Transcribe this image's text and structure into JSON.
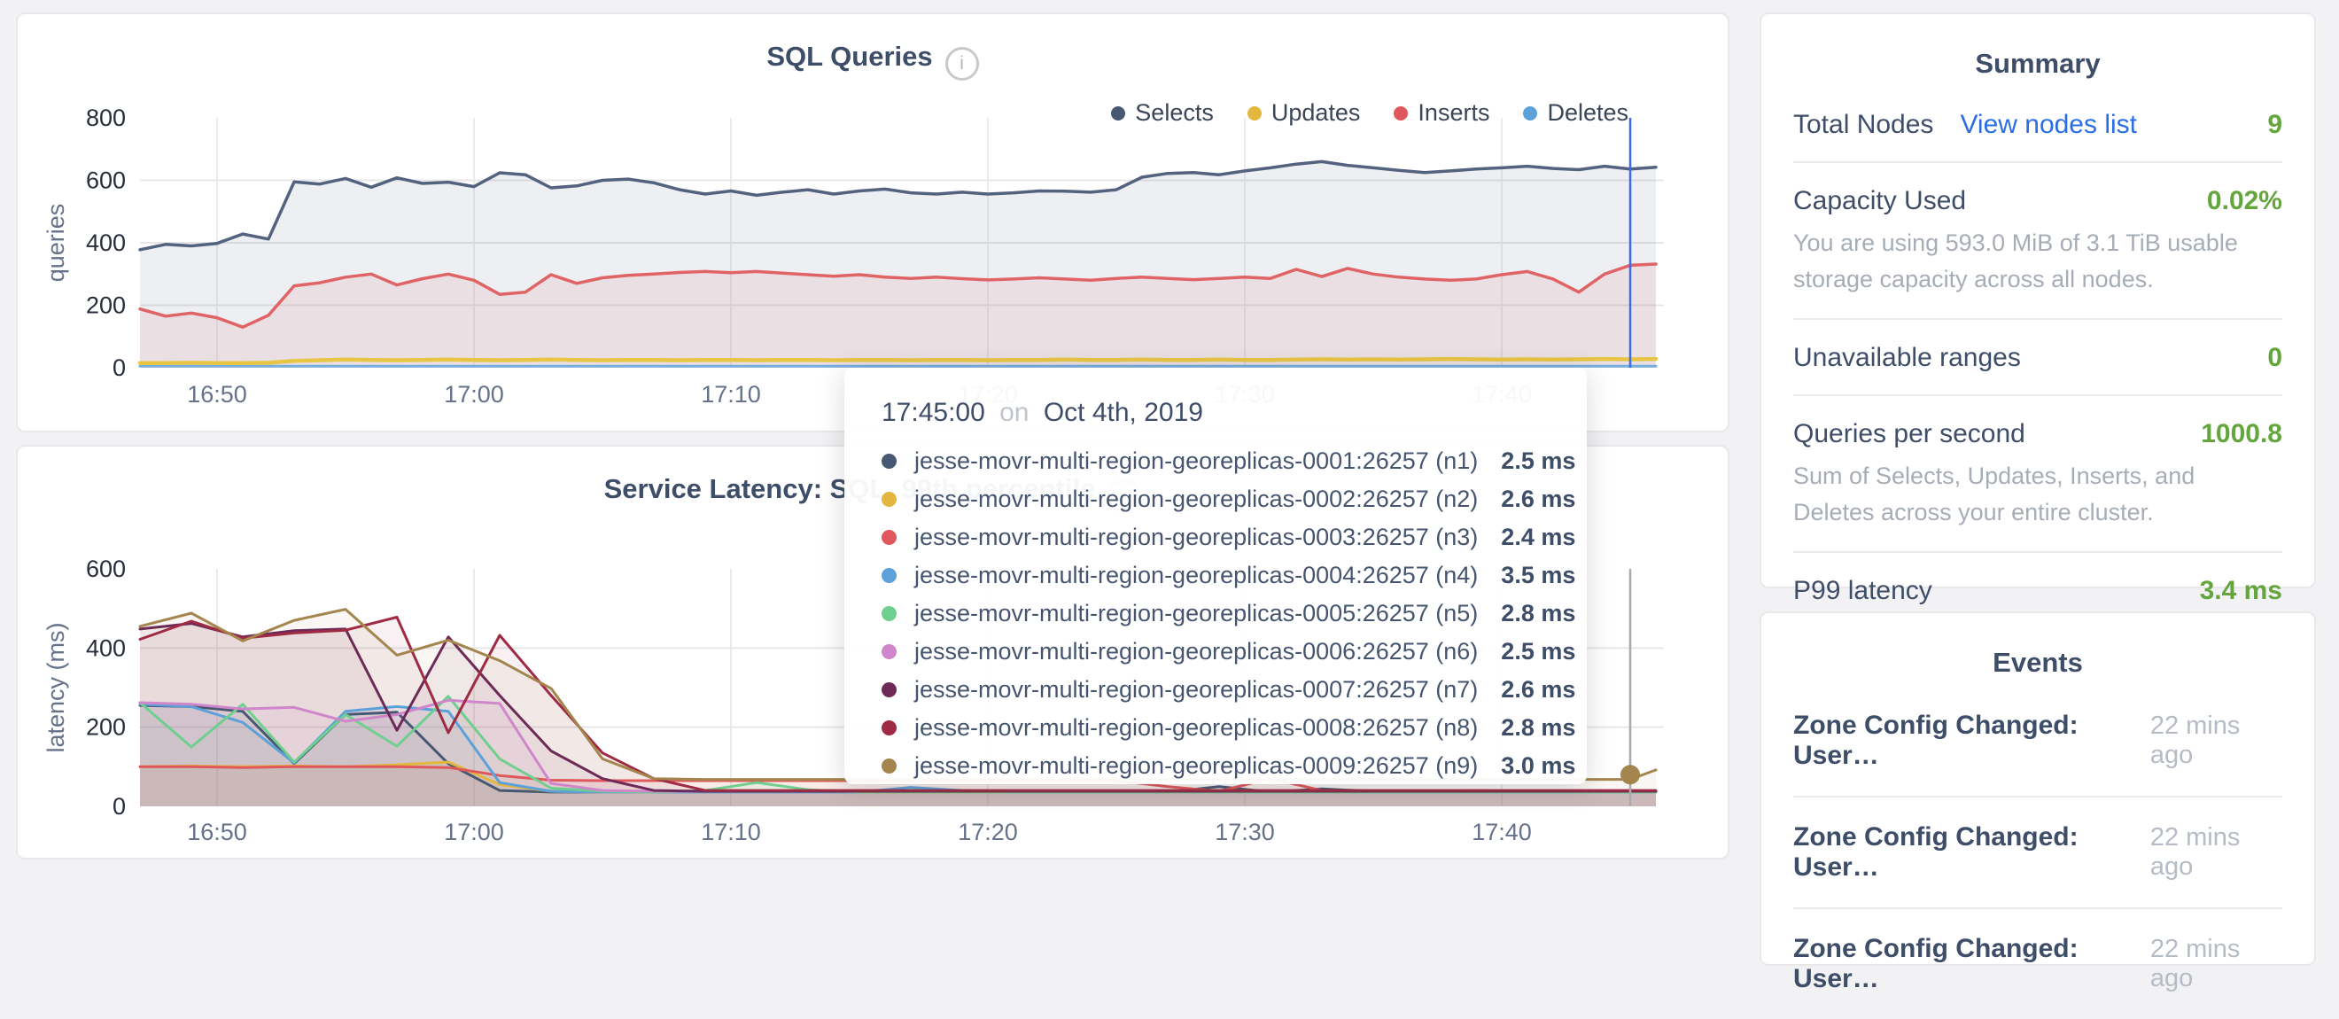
{
  "page": {
    "background": "#f2f2f4"
  },
  "icons": {
    "info": "i"
  },
  "tooltip": {
    "time": "17:45:00",
    "connector": "on",
    "date": "Oct 4th, 2019",
    "rows": [
      {
        "name": "jesse-movr-multi-region-georeplicas-0001:26257 (n1)",
        "value": "2.5 ms",
        "color": "#475872"
      },
      {
        "name": "jesse-movr-multi-region-georeplicas-0002:26257 (n2)",
        "value": "2.6 ms",
        "color": "#e3b73e"
      },
      {
        "name": "jesse-movr-multi-region-georeplicas-0003:26257 (n3)",
        "value": "2.4 ms",
        "color": "#e0585b"
      },
      {
        "name": "jesse-movr-multi-region-georeplicas-0004:26257 (n4)",
        "value": "3.5 ms",
        "color": "#5ca1d9"
      },
      {
        "name": "jesse-movr-multi-region-georeplicas-0005:26257 (n5)",
        "value": "2.8 ms",
        "color": "#6fcf8e"
      },
      {
        "name": "jesse-movr-multi-region-georeplicas-0006:26257 (n6)",
        "value": "2.5 ms",
        "color": "#cf86ca"
      },
      {
        "name": "jesse-movr-multi-region-georeplicas-0007:26257 (n7)",
        "value": "2.6 ms",
        "color": "#6e2a57"
      },
      {
        "name": "jesse-movr-multi-region-georeplicas-0008:26257 (n8)",
        "value": "2.8 ms",
        "color": "#9e2b43"
      },
      {
        "name": "jesse-movr-multi-region-georeplicas-0009:26257 (n9)",
        "value": "3.0 ms",
        "color": "#a5854e"
      }
    ]
  },
  "summary": {
    "title": "Summary",
    "value_color": "#64a53e",
    "link_color": "#2a6de5",
    "rows": [
      {
        "label": "Total Nodes",
        "link": "View nodes list",
        "value": "9"
      },
      {
        "label": "Capacity Used",
        "value": "0.02%",
        "subtitle": "You are using 593.0 MiB of 3.1 TiB usable storage capacity across all nodes."
      },
      {
        "label": "Unavailable ranges",
        "value": "0"
      },
      {
        "label": "Queries per second",
        "value": "1000.8",
        "subtitle": "Sum of Selects, Updates, Inserts, and Deletes across your entire cluster."
      },
      {
        "label": "P99 latency",
        "value": "3.4 ms"
      }
    ]
  },
  "events": {
    "title": "Events",
    "items": [
      {
        "label": "Zone Config Changed: User…",
        "time": "22 mins ago"
      },
      {
        "label": "Zone Config Changed: User…",
        "time": "22 mins ago"
      },
      {
        "label": "Zone Config Changed: User…",
        "time": "22 mins ago"
      }
    ]
  },
  "chart_data": [
    {
      "type": "area",
      "title": "SQL Queries",
      "ylabel": "queries",
      "ylim": [
        0,
        800
      ],
      "yticks": [
        0,
        200,
        400,
        600,
        800
      ],
      "x_unit": "minutes since 16:47",
      "xticks": [
        {
          "t": 3,
          "label": "16:50"
        },
        {
          "t": 13,
          "label": "17:00"
        },
        {
          "t": 23,
          "label": "17:10"
        },
        {
          "t": 33,
          "label": "17:20"
        },
        {
          "t": 43,
          "label": "17:30"
        },
        {
          "t": 53,
          "label": "17:40"
        }
      ],
      "crosshair": {
        "t": 58,
        "label": "17:45",
        "color": "#3b6cf0"
      },
      "legend": [
        {
          "name": "Selects",
          "color": "#475872"
        },
        {
          "name": "Updates",
          "color": "#e3b73e"
        },
        {
          "name": "Inserts",
          "color": "#e0585b"
        },
        {
          "name": "Deletes",
          "color": "#5ca1d9"
        }
      ],
      "x": [
        0,
        1,
        2,
        3,
        4,
        5,
        6,
        7,
        8,
        9,
        10,
        11,
        12,
        13,
        14,
        15,
        16,
        17,
        18,
        19,
        20,
        21,
        22,
        23,
        24,
        25,
        26,
        27,
        28,
        29,
        30,
        31,
        32,
        33,
        34,
        35,
        36,
        37,
        38,
        39,
        40,
        41,
        42,
        43,
        44,
        45,
        46,
        47,
        48,
        49,
        50,
        51,
        52,
        53,
        54,
        55,
        56,
        57,
        58,
        59
      ],
      "series": [
        {
          "name": "Deletes",
          "color": "#76aede",
          "width": 3,
          "fill": false,
          "values": [
            5,
            5,
            5,
            5,
            5,
            5,
            5,
            5,
            5,
            5,
            5,
            5,
            5,
            5,
            5,
            5,
            5,
            5,
            5,
            5,
            5,
            5,
            5,
            5,
            5,
            5,
            5,
            5,
            5,
            5,
            5,
            5,
            5,
            5,
            5,
            5,
            5,
            5,
            5,
            5,
            5,
            5,
            5,
            5,
            5,
            5,
            5,
            5,
            5,
            5,
            5,
            5,
            5,
            5,
            5,
            5,
            5,
            5,
            5,
            5
          ]
        },
        {
          "name": "Updates",
          "color": "#e8c545",
          "width": 4.5,
          "fill": false,
          "values": [
            15,
            15,
            16,
            15,
            15,
            16,
            22,
            24,
            26,
            25,
            24,
            25,
            26,
            25,
            24,
            25,
            26,
            25,
            24,
            25,
            25,
            24,
            25,
            25,
            24,
            25,
            25,
            24,
            25,
            25,
            24,
            25,
            25,
            24,
            25,
            25,
            26,
            25,
            25,
            26,
            25,
            25,
            26,
            25,
            25,
            26,
            27,
            26,
            27,
            26,
            27,
            28,
            27,
            26,
            27,
            26,
            27,
            28,
            27,
            28
          ]
        },
        {
          "name": "Inserts",
          "color": "#e06365",
          "width": 3.5,
          "fill": true,
          "values": [
            188,
            165,
            175,
            160,
            130,
            168,
            262,
            272,
            290,
            300,
            265,
            285,
            300,
            280,
            235,
            242,
            298,
            270,
            288,
            296,
            300,
            305,
            308,
            304,
            308,
            303,
            298,
            293,
            298,
            290,
            286,
            290,
            285,
            281,
            284,
            288,
            284,
            280,
            286,
            290,
            286,
            282,
            286,
            290,
            286,
            315,
            292,
            318,
            300,
            290,
            284,
            280,
            284,
            298,
            308,
            284,
            242,
            300,
            328,
            332
          ]
        },
        {
          "name": "Selects",
          "color": "#53627f",
          "width": 3.5,
          "fill": true,
          "values": [
            378,
            395,
            390,
            398,
            428,
            412,
            595,
            588,
            606,
            578,
            608,
            590,
            594,
            580,
            624,
            618,
            576,
            582,
            600,
            604,
            592,
            570,
            556,
            566,
            552,
            562,
            570,
            556,
            566,
            572,
            560,
            556,
            562,
            556,
            560,
            566,
            565,
            562,
            570,
            610,
            622,
            625,
            618,
            630,
            640,
            652,
            660,
            648,
            640,
            632,
            625,
            630,
            636,
            640,
            645,
            638,
            634,
            645,
            636,
            642
          ]
        }
      ]
    },
    {
      "type": "area",
      "title": "Service Latency: SQL, 99th percentile",
      "ylabel": "latency (ms)",
      "ylim": [
        0,
        600
      ],
      "yticks": [
        0,
        200,
        400,
        600
      ],
      "x_unit": "minutes since 16:47",
      "xticks": [
        {
          "t": 3,
          "label": "16:50"
        },
        {
          "t": 13,
          "label": "17:00"
        },
        {
          "t": 23,
          "label": "17:10"
        },
        {
          "t": 33,
          "label": "17:20"
        },
        {
          "t": 43,
          "label": "17:30"
        },
        {
          "t": 53,
          "label": "17:40"
        }
      ],
      "crosshair": {
        "t": 58,
        "label": "17:45",
        "color": "#aaaaae",
        "bump": {
          "v": 80,
          "color": "#a5854e"
        }
      },
      "legend": [],
      "x": [
        0,
        2,
        4,
        6,
        8,
        10,
        12,
        14,
        16,
        18,
        20,
        22,
        24,
        26,
        28,
        30,
        32,
        34,
        36,
        38,
        40,
        42,
        44,
        46,
        48,
        50,
        52,
        54,
        56,
        58,
        59
      ],
      "series": [
        {
          "name": "jesse-movr-multi-region-georeplicas-0001:26257 (n1)",
          "color": "#475872",
          "width": 3,
          "fill": true,
          "values": [
            255,
            252,
            240,
            108,
            232,
            238,
            108,
            40,
            36,
            36,
            36,
            36,
            36,
            36,
            36,
            36,
            36,
            36,
            36,
            36,
            36,
            50,
            36,
            44,
            38,
            36,
            36,
            36,
            36,
            36,
            36
          ]
        },
        {
          "name": "jesse-movr-multi-region-georeplicas-0002:26257 (n2)",
          "color": "#e3b73e",
          "width": 3,
          "fill": true,
          "values": [
            100,
            102,
            100,
            102,
            100,
            105,
            112,
            55,
            38,
            36,
            36,
            36,
            36,
            36,
            36,
            36,
            36,
            36,
            36,
            36,
            36,
            36,
            36,
            36,
            36,
            36,
            36,
            36,
            36,
            36,
            36
          ]
        },
        {
          "name": "jesse-movr-multi-region-georeplicas-0003:26257 (n3)",
          "color": "#e0585b",
          "width": 3,
          "fill": true,
          "values": [
            100,
            100,
            98,
            100,
            100,
            100,
            98,
            78,
            66,
            65,
            65,
            65,
            65,
            65,
            65,
            65,
            65,
            65,
            65,
            65,
            50,
            38,
            70,
            40,
            38,
            38,
            38,
            38,
            38,
            38,
            38
          ]
        },
        {
          "name": "jesse-movr-multi-region-georeplicas-0004:26257 (n4)",
          "color": "#5ca1d9",
          "width": 3,
          "fill": true,
          "values": [
            258,
            252,
            212,
            110,
            240,
            252,
            240,
            60,
            38,
            36,
            36,
            36,
            36,
            36,
            36,
            48,
            40,
            36,
            36,
            36,
            36,
            36,
            36,
            36,
            36,
            36,
            36,
            36,
            36,
            36,
            36
          ]
        },
        {
          "name": "jesse-movr-multi-region-georeplicas-0005:26257 (n5)",
          "color": "#6fcf8e",
          "width": 3,
          "fill": true,
          "values": [
            262,
            150,
            258,
            112,
            232,
            152,
            278,
            120,
            46,
            38,
            36,
            40,
            60,
            42,
            36,
            36,
            36,
            36,
            36,
            36,
            36,
            36,
            36,
            36,
            36,
            36,
            36,
            36,
            36,
            36,
            36
          ]
        },
        {
          "name": "jesse-movr-multi-region-georeplicas-0006:26257 (n6)",
          "color": "#cf86ca",
          "width": 3,
          "fill": true,
          "values": [
            262,
            258,
            246,
            250,
            215,
            232,
            268,
            260,
            58,
            40,
            38,
            38,
            38,
            38,
            38,
            38,
            38,
            38,
            38,
            38,
            38,
            38,
            38,
            38,
            38,
            38,
            40,
            38,
            38,
            38,
            38
          ]
        },
        {
          "name": "jesse-movr-multi-region-georeplicas-0007:26257 (n7)",
          "color": "#6e2a57",
          "width": 3,
          "fill": true,
          "values": [
            448,
            462,
            428,
            444,
            448,
            192,
            428,
            280,
            140,
            70,
            40,
            38,
            38,
            38,
            38,
            38,
            38,
            38,
            38,
            38,
            38,
            38,
            38,
            38,
            38,
            38,
            38,
            38,
            38,
            38,
            38
          ]
        },
        {
          "name": "jesse-movr-multi-region-georeplicas-0008:26257 (n8)",
          "color": "#9e2b43",
          "width": 3,
          "fill": true,
          "values": [
            422,
            468,
            425,
            438,
            445,
            478,
            186,
            432,
            280,
            135,
            70,
            40,
            40,
            40,
            40,
            40,
            40,
            40,
            40,
            40,
            40,
            40,
            40,
            40,
            40,
            40,
            40,
            40,
            40,
            40,
            40
          ]
        },
        {
          "name": "jesse-movr-multi-region-georeplicas-0009:26257 (n9)",
          "color": "#a5854e",
          "width": 3,
          "fill": true,
          "values": [
            455,
            488,
            418,
            470,
            498,
            382,
            420,
            368,
            298,
            120,
            70,
            68,
            68,
            68,
            68,
            68,
            68,
            68,
            68,
            68,
            68,
            68,
            68,
            68,
            68,
            68,
            68,
            68,
            68,
            68,
            92
          ]
        }
      ]
    }
  ]
}
